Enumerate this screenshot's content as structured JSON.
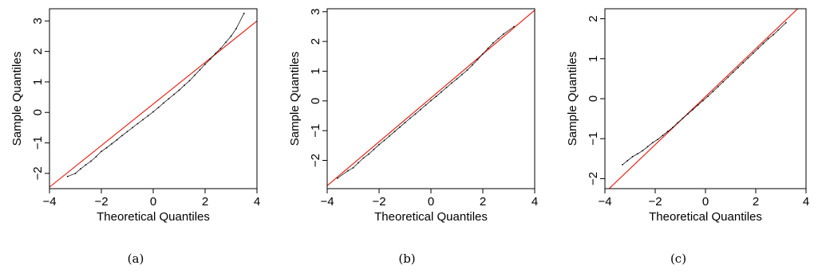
{
  "chart_data": [
    {
      "type": "scatter",
      "title": "",
      "xlabel": "Theoretical Quantiles",
      "ylabel": "Sample Quantiles",
      "xlim": [
        -4,
        4
      ],
      "ylim": [
        -2.5,
        3.4
      ],
      "xticks": [
        -4,
        -2,
        0,
        2,
        4
      ],
      "xtick_labels": [
        "−4",
        "−2",
        "0",
        "2",
        "4"
      ],
      "yticks": [
        -2,
        -1,
        0,
        1,
        2,
        3
      ],
      "ytick_labels": [
        "−2",
        "−1",
        "0",
        "1",
        "2",
        "3"
      ],
      "ref_line": {
        "x": [
          -4,
          4
        ],
        "y": [
          -2.45,
          3.0
        ],
        "color": "#e8261c"
      },
      "x": [
        -3.3,
        -3.0,
        -2.8,
        -2.6,
        -2.4,
        -2.2,
        -2.0,
        -1.8,
        -1.6,
        -1.4,
        -1.2,
        -1.0,
        -0.8,
        -0.6,
        -0.4,
        -0.2,
        0.0,
        0.2,
        0.4,
        0.6,
        0.8,
        1.0,
        1.2,
        1.4,
        1.6,
        1.8,
        2.0,
        2.2,
        2.4,
        2.6,
        2.8,
        3.0,
        3.2,
        3.5
      ],
      "y": [
        -2.1,
        -2.0,
        -1.85,
        -1.72,
        -1.6,
        -1.45,
        -1.28,
        -1.16,
        -1.03,
        -0.9,
        -0.76,
        -0.63,
        -0.5,
        -0.37,
        -0.24,
        -0.11,
        0.02,
        0.16,
        0.31,
        0.45,
        0.59,
        0.73,
        0.89,
        1.04,
        1.22,
        1.4,
        1.58,
        1.75,
        1.93,
        2.1,
        2.3,
        2.5,
        2.75,
        3.25
      ],
      "caption": "(a)"
    },
    {
      "type": "scatter",
      "title": "",
      "xlabel": "Theoretical Quantiles",
      "ylabel": "Sample Quantiles",
      "xlim": [
        -4,
        4
      ],
      "ylim": [
        -2.95,
        3.1
      ],
      "xticks": [
        -4,
        -2,
        0,
        2,
        4
      ],
      "xtick_labels": [
        "−4",
        "−2",
        "0",
        "2",
        "4"
      ],
      "yticks": [
        -2,
        -1,
        0,
        1,
        2,
        3
      ],
      "ytick_labels": [
        "−2",
        "−1",
        "0",
        "1",
        "2",
        "3"
      ],
      "ref_line": {
        "x": [
          -4,
          4
        ],
        "y": [
          -2.85,
          3.05
        ],
        "color": "#e8261c"
      },
      "x": [
        -3.6,
        -3.2,
        -3.0,
        -2.8,
        -2.6,
        -2.4,
        -2.2,
        -2.0,
        -1.8,
        -1.6,
        -1.4,
        -1.2,
        -1.0,
        -0.8,
        -0.6,
        -0.4,
        -0.2,
        0.0,
        0.2,
        0.4,
        0.6,
        0.8,
        1.0,
        1.2,
        1.4,
        1.6,
        1.8,
        2.0,
        2.2,
        2.4,
        2.6,
        2.8,
        3.2
      ],
      "y": [
        -2.6,
        -2.35,
        -2.25,
        -2.08,
        -1.92,
        -1.79,
        -1.63,
        -1.47,
        -1.33,
        -1.18,
        -1.03,
        -0.88,
        -0.73,
        -0.58,
        -0.44,
        -0.29,
        -0.14,
        0.01,
        0.15,
        0.3,
        0.45,
        0.6,
        0.74,
        0.89,
        1.04,
        1.21,
        1.39,
        1.58,
        1.77,
        1.95,
        2.1,
        2.25,
        2.5
      ],
      "caption": "(b)"
    },
    {
      "type": "scatter",
      "title": "",
      "xlabel": "Theoretical Quantiles",
      "ylabel": "Sample Quantiles",
      "xlim": [
        -4,
        4
      ],
      "ylim": [
        -2.25,
        2.25
      ],
      "xticks": [
        -4,
        -2,
        0,
        2,
        4
      ],
      "xtick_labels": [
        "−4",
        "−2",
        "0",
        "2",
        "4"
      ],
      "yticks": [
        -2,
        -1,
        0,
        1,
        2
      ],
      "ytick_labels": [
        "−2",
        "−1",
        "0",
        "1",
        "2"
      ],
      "ref_line": {
        "x": [
          -4,
          4
        ],
        "y": [
          -2.35,
          2.45
        ],
        "color": "#e8261c"
      },
      "x": [
        -3.3,
        -3.1,
        -2.9,
        -2.7,
        -2.5,
        -2.3,
        -2.1,
        -1.9,
        -1.7,
        -1.5,
        -1.3,
        -1.1,
        -0.9,
        -0.7,
        -0.5,
        -0.3,
        -0.1,
        0.1,
        0.3,
        0.5,
        0.7,
        0.9,
        1.1,
        1.3,
        1.5,
        1.7,
        1.9,
        2.1,
        2.3,
        2.5,
        2.7,
        2.9,
        3.2
      ],
      "y": [
        -1.65,
        -1.55,
        -1.45,
        -1.38,
        -1.3,
        -1.2,
        -1.1,
        -1.02,
        -0.92,
        -0.82,
        -0.72,
        -0.6,
        -0.49,
        -0.38,
        -0.27,
        -0.16,
        -0.05,
        0.06,
        0.18,
        0.3,
        0.42,
        0.54,
        0.66,
        0.78,
        0.9,
        1.02,
        1.14,
        1.26,
        1.38,
        1.5,
        1.6,
        1.72,
        1.9
      ],
      "caption": "(c)"
    }
  ]
}
